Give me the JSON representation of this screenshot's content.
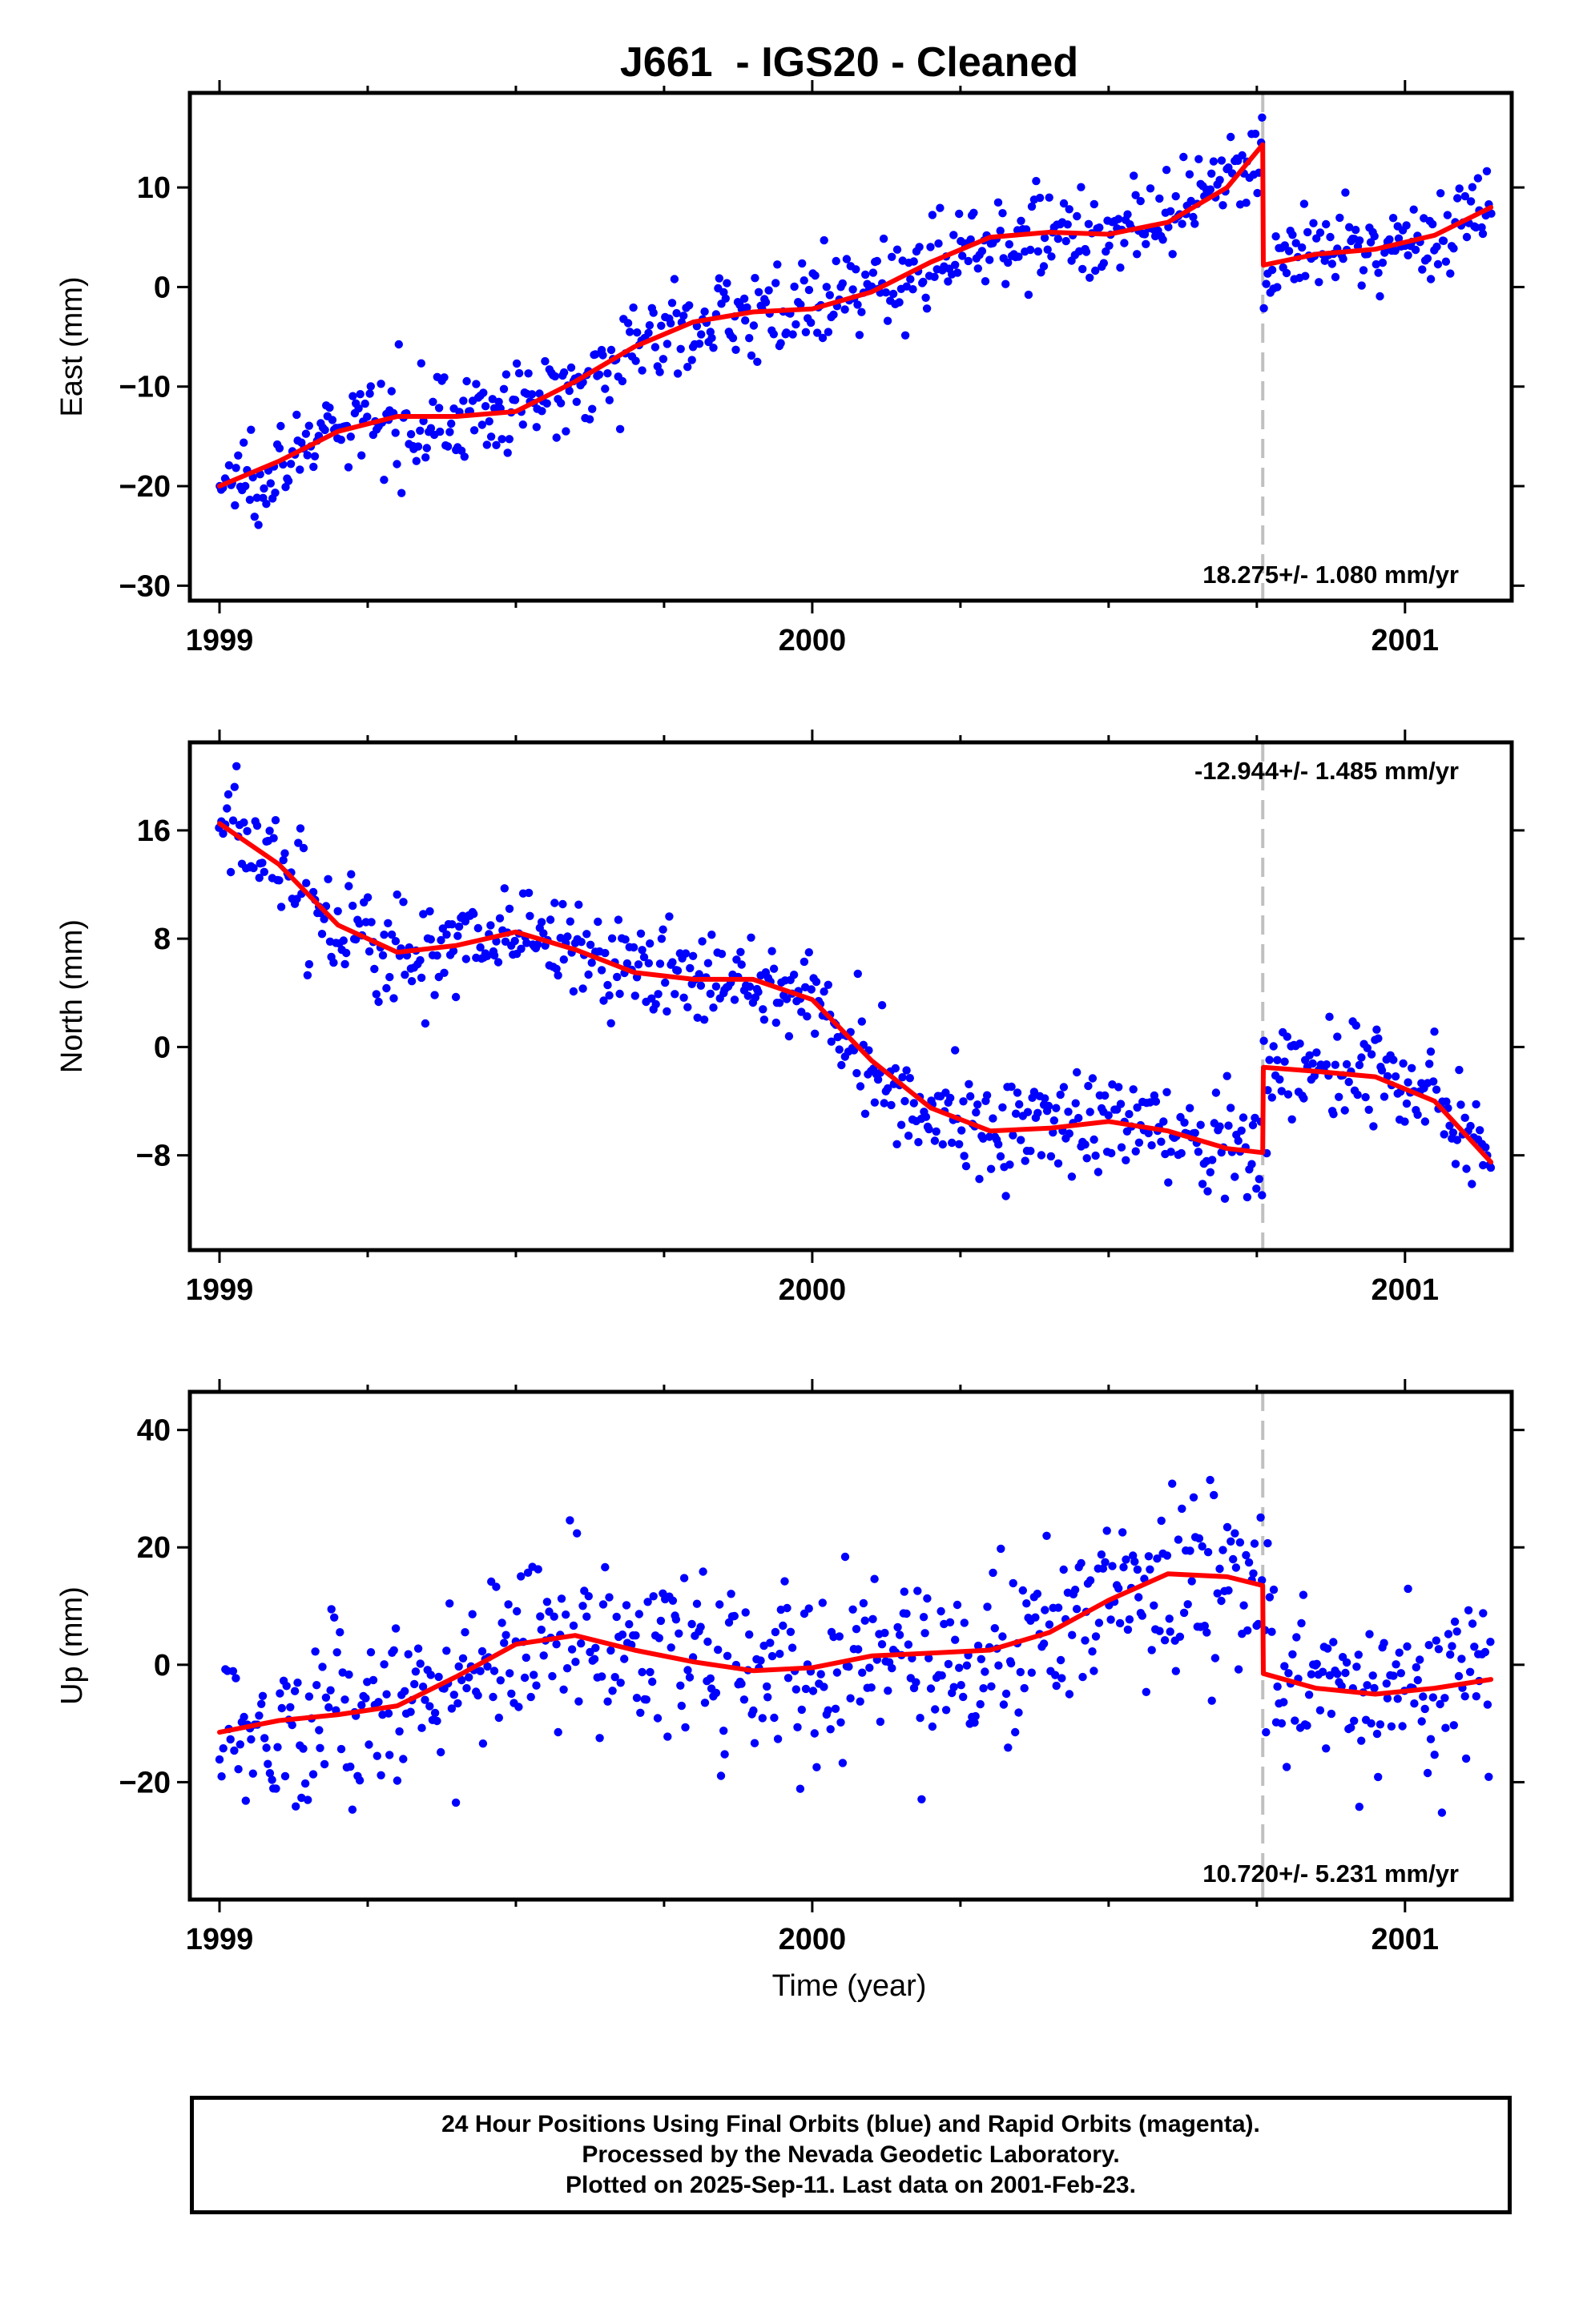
{
  "figure": {
    "title": "J661  - IGS20 - Cleaned",
    "xlabel": "Time (year)",
    "footer_lines": [
      "24 Hour Positions Using Final Orbits (blue) and Rapid Orbits (magenta).",
      "Processed by the Nevada Geodetic Laboratory.",
      "Plotted on 2025-Sep-11. Last data on 2001-Feb-23."
    ],
    "colors": {
      "data": "#0000ff",
      "model": "#ff0000",
      "break_line": "#c0c0c0"
    }
  },
  "chart_data": [
    {
      "type": "scatter",
      "ylabel": "East (mm)",
      "xlim": [
        1998.95,
        2001.18
      ],
      "ylim": [
        -31.5,
        19.5
      ],
      "x_ticks": [
        1999,
        2000,
        2001
      ],
      "x_tick_labels": [
        "1999",
        "2000",
        "2001"
      ],
      "y_ticks": [
        -30,
        -20,
        -10,
        0,
        10
      ],
      "y_tick_labels": [
        "−30",
        "−20",
        "−10",
        "0",
        "10"
      ],
      "rate_label": "18.275+/- 1.080 mm/yr",
      "rate_position": "bottom-right",
      "break_epoch": 2000.76,
      "data_span": [
        1999.0,
        2001.145
      ],
      "noise_mm": 2.2,
      "model_line": {
        "x": [
          1999.0,
          1999.1,
          1999.2,
          1999.3,
          1999.4,
          1999.5,
          1999.6,
          1999.7,
          1999.8,
          1999.9,
          2000.0,
          2000.1,
          2000.2,
          2000.3,
          2000.4,
          2000.5,
          2000.6,
          2000.7,
          2000.76,
          2000.761,
          2000.85,
          2000.95,
          2001.05,
          2001.145
        ],
        "y": [
          -20,
          -17.5,
          -14.5,
          -13,
          -13,
          -12.5,
          -9.5,
          -6,
          -3.5,
          -2.5,
          -2.2,
          -0.5,
          2.5,
          5,
          5.5,
          5.3,
          6.5,
          10,
          14.3,
          2.2,
          3.3,
          3.8,
          5.2,
          8.0
        ]
      }
    },
    {
      "type": "scatter",
      "ylabel": "North (mm)",
      "xlim": [
        1998.95,
        2001.18
      ],
      "ylim": [
        -15,
        22.5
      ],
      "x_ticks": [
        1999,
        2000,
        2001
      ],
      "x_tick_labels": [
        "1999",
        "2000",
        "2001"
      ],
      "y_ticks": [
        -8,
        0,
        8,
        16
      ],
      "y_tick_labels": [
        "−8",
        "0",
        "8",
        "16"
      ],
      "rate_label": "-12.944+/- 1.485 mm/yr",
      "rate_position": "top-right",
      "break_epoch": 2000.76,
      "data_span": [
        1999.0,
        2001.145
      ],
      "noise_mm": 2.0,
      "model_line": {
        "x": [
          1999.0,
          1999.1,
          1999.2,
          1999.3,
          1999.4,
          1999.5,
          1999.6,
          1999.7,
          1999.8,
          1999.9,
          2000.0,
          2000.1,
          2000.2,
          2000.3,
          2000.4,
          2000.5,
          2000.6,
          2000.7,
          2000.76,
          2000.761,
          2000.85,
          2000.95,
          2001.05,
          2001.145
        ],
        "y": [
          16.5,
          13.5,
          9,
          7,
          7.5,
          8.5,
          7.2,
          5.5,
          5,
          5,
          3.5,
          -1,
          -4.5,
          -6.2,
          -6,
          -5.5,
          -6.2,
          -7.5,
          -7.8,
          -1.5,
          -1.8,
          -2.2,
          -4,
          -8.5
        ]
      }
    },
    {
      "type": "scatter",
      "ylabel": "Up (mm)",
      "xlim": [
        1998.95,
        2001.18
      ],
      "ylim": [
        -40,
        46.5
      ],
      "x_ticks": [
        1999,
        2000,
        2001
      ],
      "x_tick_labels": [
        "1999",
        "2000",
        "2001"
      ],
      "y_ticks": [
        -20,
        0,
        20,
        40
      ],
      "y_tick_labels": [
        "−20",
        "0",
        "20",
        "40"
      ],
      "rate_label": "10.720+/- 5.231 mm/yr",
      "rate_position": "bottom-right",
      "break_epoch": 2000.76,
      "data_span": [
        1999.0,
        2001.145
      ],
      "noise_mm": 7.5,
      "model_line": {
        "x": [
          1999.0,
          1999.1,
          1999.2,
          1999.3,
          1999.4,
          1999.5,
          1999.6,
          1999.7,
          1999.8,
          1999.9,
          2000.0,
          2000.1,
          2000.2,
          2000.3,
          2000.4,
          2000.5,
          2000.6,
          2000.7,
          2000.76,
          2000.761,
          2000.85,
          2000.95,
          2001.05,
          2001.145
        ],
        "y": [
          -11.5,
          -9.5,
          -8.5,
          -7,
          -2,
          3.5,
          5,
          2.5,
          0.5,
          -1,
          -0.5,
          1.5,
          2,
          2.5,
          5.5,
          11,
          15.5,
          15,
          13.5,
          -1.5,
          -4,
          -5,
          -4,
          -2.5
        ]
      }
    }
  ]
}
